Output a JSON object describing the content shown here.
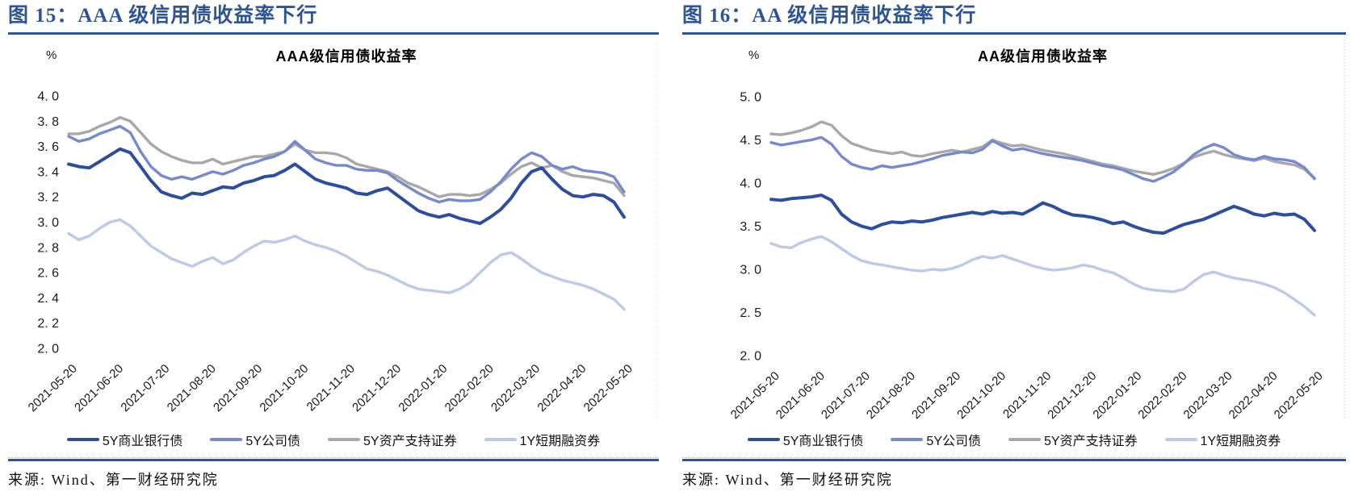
{
  "figures": [
    {
      "caption": "图 15：AAA 级信用债收益率下行",
      "source": "来源: Wind、第一财经研究院"
    },
    {
      "caption": "图 16：AA 级信用债收益率下行",
      "source": "来源: Wind、第一财经研究院"
    }
  ],
  "colors": {
    "accent": "#2F5496",
    "border_dots": "#BDBDBD"
  },
  "chart_data": [
    {
      "type": "line",
      "title": "AAA级信用债收益率",
      "unit": "%",
      "ylim": [
        2.0,
        4.0
      ],
      "grid": false,
      "legend_position": "bottom",
      "y_ticks": [
        "4. 0",
        "3. 8",
        "3. 6",
        "3. 4",
        "3. 2",
        "3. 0",
        "2. 8",
        "2. 6",
        "2. 4",
        "2. 2",
        "2. 0"
      ],
      "x_ticks": [
        "2021-05-20",
        "2021-06-20",
        "2021-07-20",
        "2021-08-20",
        "2021-09-20",
        "2021-10-20",
        "2021-11-20",
        "2021-12-20",
        "2022-01-20",
        "2022-02-20",
        "2022-03-20",
        "2022-04-20",
        "2022-05-20"
      ],
      "series": [
        {
          "name": "5Y商业银行债",
          "color": "#2B4F9E",
          "values": [
            3.46,
            3.44,
            3.43,
            3.48,
            3.53,
            3.58,
            3.55,
            3.44,
            3.33,
            3.24,
            3.21,
            3.19,
            3.23,
            3.22,
            3.25,
            3.28,
            3.27,
            3.31,
            3.33,
            3.36,
            3.37,
            3.41,
            3.46,
            3.4,
            3.34,
            3.31,
            3.29,
            3.27,
            3.23,
            3.22,
            3.25,
            3.27,
            3.21,
            3.15,
            3.09,
            3.06,
            3.04,
            3.06,
            3.03,
            3.01,
            2.99,
            3.04,
            3.1,
            3.19,
            3.31,
            3.4,
            3.43,
            3.34,
            3.26,
            3.21,
            3.2,
            3.22,
            3.21,
            3.16,
            3.04
          ]
        },
        {
          "name": "5Y公司债",
          "color": "#7589CF",
          "values": [
            3.68,
            3.64,
            3.66,
            3.7,
            3.73,
            3.76,
            3.71,
            3.56,
            3.44,
            3.37,
            3.34,
            3.36,
            3.34,
            3.37,
            3.4,
            3.38,
            3.41,
            3.45,
            3.47,
            3.5,
            3.52,
            3.56,
            3.64,
            3.57,
            3.5,
            3.47,
            3.45,
            3.45,
            3.42,
            3.41,
            3.41,
            3.39,
            3.33,
            3.28,
            3.23,
            3.19,
            3.16,
            3.18,
            3.17,
            3.17,
            3.18,
            3.24,
            3.32,
            3.42,
            3.5,
            3.55,
            3.52,
            3.45,
            3.42,
            3.44,
            3.41,
            3.4,
            3.39,
            3.36,
            3.24
          ]
        },
        {
          "name": "5Y资产支持证券",
          "color": "#A8A8A8",
          "values": [
            3.7,
            3.7,
            3.72,
            3.76,
            3.79,
            3.83,
            3.8,
            3.71,
            3.62,
            3.56,
            3.52,
            3.49,
            3.47,
            3.47,
            3.5,
            3.46,
            3.48,
            3.5,
            3.52,
            3.52,
            3.54,
            3.56,
            3.62,
            3.57,
            3.55,
            3.55,
            3.54,
            3.51,
            3.46,
            3.44,
            3.42,
            3.4,
            3.36,
            3.31,
            3.28,
            3.24,
            3.2,
            3.22,
            3.22,
            3.21,
            3.22,
            3.26,
            3.31,
            3.38,
            3.44,
            3.47,
            3.43,
            3.45,
            3.4,
            3.37,
            3.36,
            3.35,
            3.33,
            3.31,
            3.21
          ]
        },
        {
          "name": "1Y短期融资券",
          "color": "#BDC9E9",
          "values": [
            2.91,
            2.86,
            2.89,
            2.95,
            3.0,
            3.02,
            2.97,
            2.89,
            2.81,
            2.76,
            2.71,
            2.68,
            2.65,
            2.69,
            2.72,
            2.67,
            2.7,
            2.76,
            2.81,
            2.85,
            2.84,
            2.86,
            2.89,
            2.85,
            2.82,
            2.8,
            2.77,
            2.73,
            2.68,
            2.63,
            2.61,
            2.58,
            2.54,
            2.5,
            2.47,
            2.46,
            2.45,
            2.44,
            2.47,
            2.52,
            2.6,
            2.68,
            2.74,
            2.76,
            2.71,
            2.65,
            2.6,
            2.57,
            2.54,
            2.52,
            2.5,
            2.47,
            2.43,
            2.39,
            2.31
          ]
        }
      ]
    },
    {
      "type": "line",
      "title": "AA级信用债收益率",
      "unit": "%",
      "ylim": [
        2.0,
        5.0
      ],
      "grid": false,
      "legend_position": "bottom",
      "y_ticks": [
        "5. 0",
        "4. 5",
        "4. 0",
        "3. 5",
        "3. 0",
        "2. 5",
        "2. 0"
      ],
      "x_ticks": [
        "2021-05-20",
        "2021-06-20",
        "2021-07-20",
        "2021-08-20",
        "2021-09-20",
        "2021-10-20",
        "2021-11-20",
        "2021-12-20",
        "2022-01-20",
        "2022-02-20",
        "2022-03-20",
        "2022-04-20",
        "2022-05-20"
      ],
      "series": [
        {
          "name": "5Y商业银行债",
          "color": "#2B4F9E",
          "values": [
            3.81,
            3.8,
            3.82,
            3.83,
            3.84,
            3.86,
            3.8,
            3.64,
            3.55,
            3.5,
            3.47,
            3.52,
            3.55,
            3.54,
            3.56,
            3.55,
            3.57,
            3.6,
            3.62,
            3.64,
            3.66,
            3.64,
            3.67,
            3.65,
            3.66,
            3.64,
            3.7,
            3.77,
            3.73,
            3.67,
            3.63,
            3.62,
            3.6,
            3.57,
            3.53,
            3.55,
            3.5,
            3.46,
            3.43,
            3.42,
            3.47,
            3.52,
            3.55,
            3.58,
            3.63,
            3.68,
            3.73,
            3.69,
            3.64,
            3.62,
            3.65,
            3.63,
            3.64,
            3.58,
            3.45
          ]
        },
        {
          "name": "5Y公司债",
          "color": "#7589CF",
          "values": [
            4.47,
            4.44,
            4.46,
            4.48,
            4.5,
            4.53,
            4.45,
            4.31,
            4.22,
            4.18,
            4.16,
            4.2,
            4.18,
            4.2,
            4.22,
            4.25,
            4.28,
            4.32,
            4.34,
            4.36,
            4.35,
            4.39,
            4.49,
            4.43,
            4.38,
            4.4,
            4.37,
            4.34,
            4.32,
            4.3,
            4.28,
            4.26,
            4.23,
            4.2,
            4.18,
            4.15,
            4.1,
            4.05,
            4.02,
            4.07,
            4.13,
            4.22,
            4.33,
            4.4,
            4.45,
            4.41,
            4.33,
            4.29,
            4.27,
            4.31,
            4.28,
            4.27,
            4.25,
            4.18,
            4.05
          ]
        },
        {
          "name": "5Y资产支持证券",
          "color": "#A8A8A8",
          "values": [
            4.57,
            4.56,
            4.58,
            4.61,
            4.65,
            4.71,
            4.67,
            4.55,
            4.46,
            4.42,
            4.38,
            4.36,
            4.34,
            4.36,
            4.32,
            4.31,
            4.34,
            4.36,
            4.38,
            4.36,
            4.39,
            4.42,
            4.5,
            4.46,
            4.43,
            4.44,
            4.41,
            4.38,
            4.36,
            4.34,
            4.31,
            4.28,
            4.25,
            4.22,
            4.2,
            4.17,
            4.14,
            4.12,
            4.1,
            4.13,
            4.17,
            4.23,
            4.3,
            4.34,
            4.37,
            4.33,
            4.3,
            4.28,
            4.26,
            4.29,
            4.25,
            4.23,
            4.21,
            4.16,
            4.06
          ]
        },
        {
          "name": "1Y短期融资券",
          "color": "#BDC9E9",
          "values": [
            3.3,
            3.26,
            3.25,
            3.31,
            3.35,
            3.38,
            3.32,
            3.24,
            3.16,
            3.1,
            3.07,
            3.05,
            3.03,
            3.01,
            2.99,
            2.98,
            3.0,
            2.99,
            3.01,
            3.05,
            3.11,
            3.15,
            3.13,
            3.16,
            3.12,
            3.08,
            3.04,
            3.01,
            2.99,
            3.0,
            3.02,
            3.05,
            3.03,
            2.99,
            2.96,
            2.9,
            2.83,
            2.78,
            2.76,
            2.75,
            2.74,
            2.77,
            2.86,
            2.94,
            2.97,
            2.93,
            2.9,
            2.88,
            2.86,
            2.83,
            2.79,
            2.73,
            2.65,
            2.57,
            2.47
          ]
        }
      ]
    }
  ]
}
